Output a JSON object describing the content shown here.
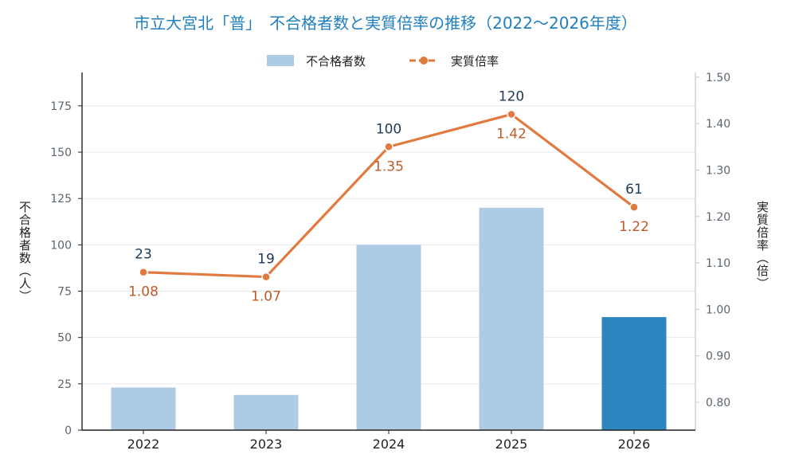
{
  "chart_data": {
    "type": "bar",
    "title": "市立大宮北「普」　不合格者数と実質倍率の推移（2022〜2026年度）",
    "categories": [
      "2022",
      "2023",
      "2024",
      "2025",
      "2026"
    ],
    "series": [
      {
        "name": "不合格者数",
        "kind": "bar",
        "axis": "left",
        "values": [
          23,
          19,
          100,
          120,
          61
        ],
        "labels": [
          "23",
          "19",
          "100",
          "120",
          "61"
        ]
      },
      {
        "name": "実質倍率",
        "kind": "line",
        "axis": "right",
        "values": [
          1.08,
          1.07,
          1.35,
          1.42,
          1.22
        ],
        "labels": [
          "1.08",
          "1.07",
          "1.35",
          "1.42",
          "1.22"
        ]
      }
    ],
    "ylabel": "不合格者数（人）",
    "y2label": "実質倍率（倍）",
    "ylim": [
      0,
      193
    ],
    "y2lim": [
      0.74,
      1.51
    ],
    "yticks": [
      "0",
      "25",
      "50",
      "75",
      "100",
      "125",
      "150",
      "175"
    ],
    "y2ticks": [
      "0.80",
      "0.90",
      "1.00",
      "1.10",
      "1.20",
      "1.30",
      "1.40",
      "1.50"
    ],
    "grid": true,
    "legend_position": "top-center",
    "colors": {
      "bar": "#aecbe6",
      "bar_highlight": "#2e86c1",
      "line": "#e07a3f",
      "title": "#1f7fc1"
    },
    "highlight_index": 4
  }
}
